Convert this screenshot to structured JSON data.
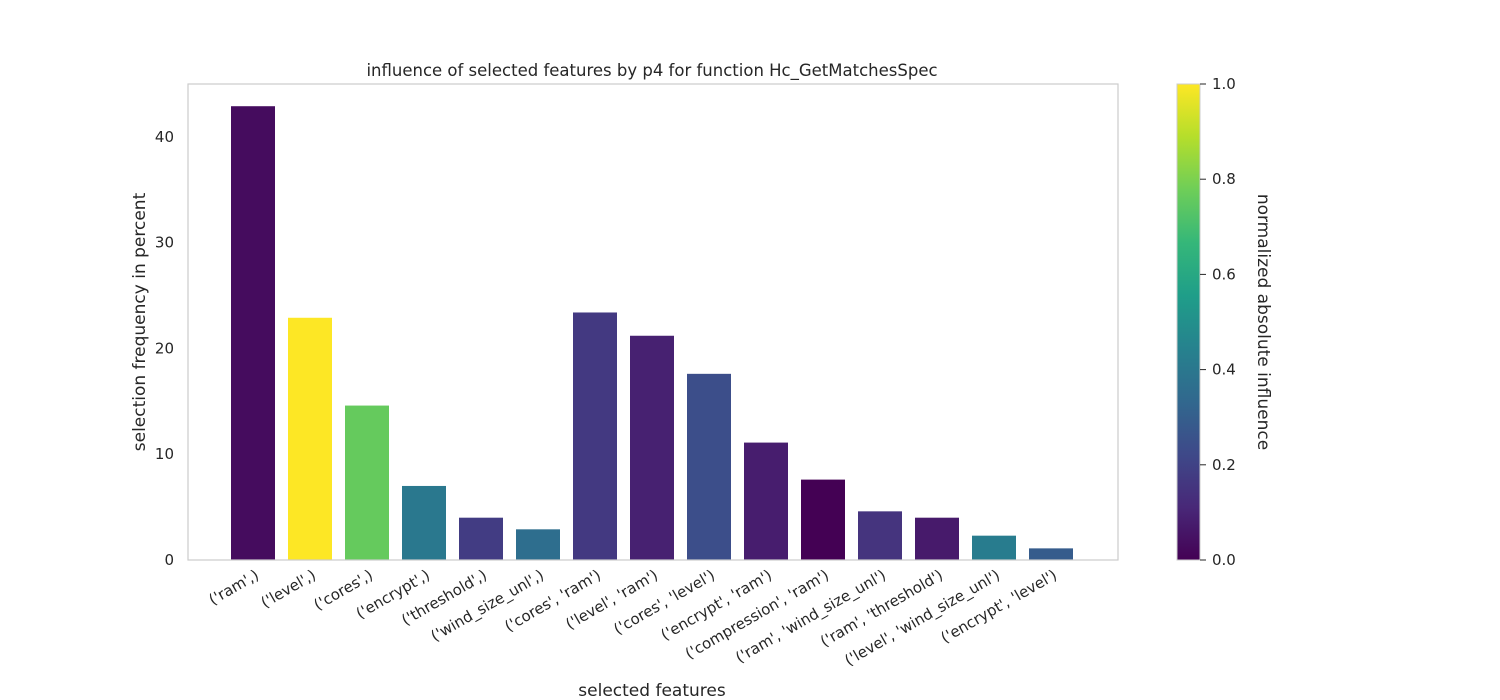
{
  "chart_data": {
    "type": "bar",
    "title": "influence of selected features by p4 for function Hc_GetMatchesSpec",
    "xlabel": "selected features",
    "ylabel": "selection frequency in percent",
    "ylim": [
      0,
      45
    ],
    "yticks": [
      0,
      10,
      20,
      30,
      40
    ],
    "grid": false,
    "categories": [
      "('ram',)",
      "('level',)",
      "('cores',)",
      "('encrypt',)",
      "('threshold',)",
      "('wind_size_unl',)",
      "('cores', 'ram')",
      "('level', 'ram')",
      "('cores', 'level')",
      "('encrypt', 'ram')",
      "('compression', 'ram')",
      "('ram', 'wind_size_unl')",
      "('ram', 'threshold')",
      "('level', 'wind_size_unl')",
      "('encrypt', 'level')"
    ],
    "values": [
      42.9,
      22.9,
      14.6,
      7.0,
      4.0,
      2.9,
      23.4,
      21.2,
      17.6,
      11.1,
      7.6,
      4.6,
      4.0,
      2.3,
      1.1
    ],
    "normalized_influence": [
      0.03,
      1.0,
      0.76,
      0.4,
      0.18,
      0.36,
      0.17,
      0.09,
      0.24,
      0.08,
      0.0,
      0.15,
      0.07,
      0.42,
      0.29
    ],
    "colorbar": {
      "label": "normalized absolute influence",
      "range": [
        0.0,
        1.0
      ],
      "ticks": [
        "0.0",
        "0.2",
        "0.4",
        "0.6",
        "0.8",
        "1.0"
      ],
      "colormap": "viridis",
      "colormap_stops": [
        "#440154",
        "#482878",
        "#3e4989",
        "#31688e",
        "#26828e",
        "#1f9e89",
        "#35b779",
        "#6ece58",
        "#b5de2b",
        "#fde725"
      ]
    }
  }
}
